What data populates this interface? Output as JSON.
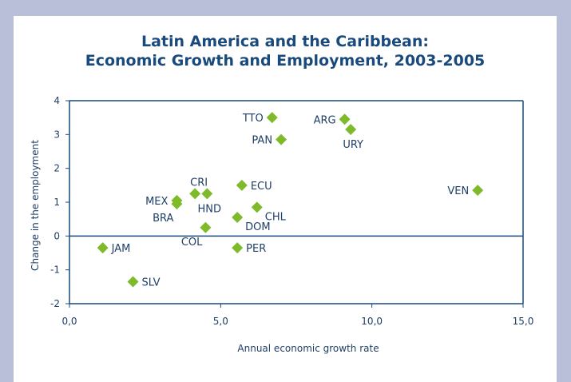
{
  "chart_data": {
    "type": "scatter",
    "title_line1": "Latin America and the Caribbean:",
    "title_line2": "Economic Growth and Employment, 2003-2005",
    "xlabel": "Annual economic growth rate",
    "ylabel": "Change in the employment",
    "xlim": [
      0,
      15
    ],
    "ylim": [
      -2,
      4
    ],
    "xticks": [
      0,
      5,
      10,
      15
    ],
    "xtick_labels": [
      "0,0",
      "5,0",
      "10,0",
      "15,0"
    ],
    "yticks": [
      -2,
      -1,
      0,
      1,
      2,
      3,
      4
    ],
    "ytick_labels": [
      "-2",
      "-1",
      "0",
      "1",
      "2",
      "3",
      "4"
    ],
    "grid": false,
    "marker_color": "#7fba2b",
    "axis_color": "#1a4a7c",
    "points": [
      {
        "label": "TTO",
        "x": 6.7,
        "y": 3.5,
        "label_pos": "left"
      },
      {
        "label": "ARG",
        "x": 9.1,
        "y": 3.45,
        "label_pos": "left"
      },
      {
        "label": "URY",
        "x": 9.3,
        "y": 3.15,
        "label_pos": "below"
      },
      {
        "label": "PAN",
        "x": 7.0,
        "y": 2.85,
        "label_pos": "left"
      },
      {
        "label": "ECU",
        "x": 5.7,
        "y": 1.5,
        "label_pos": "right"
      },
      {
        "label": "VEN",
        "x": 13.5,
        "y": 1.35,
        "label_pos": "left"
      },
      {
        "label": "CRI",
        "x": 4.15,
        "y": 1.25,
        "label_pos": "above"
      },
      {
        "label": "HND",
        "x": 4.55,
        "y": 1.25,
        "label_pos": "below"
      },
      {
        "label": "MEX",
        "x": 3.55,
        "y": 1.05,
        "label_pos": "left"
      },
      {
        "label": "BRA",
        "x": 3.55,
        "y": 0.95,
        "label_pos": "below-left"
      },
      {
        "label": "CHL",
        "x": 6.2,
        "y": 0.85,
        "label_pos": "right-below"
      },
      {
        "label": "DOM",
        "x": 5.55,
        "y": 0.55,
        "label_pos": "right-below"
      },
      {
        "label": "COL",
        "x": 4.5,
        "y": 0.25,
        "label_pos": "below-left"
      },
      {
        "label": "JAM",
        "x": 1.1,
        "y": -0.35,
        "label_pos": "right"
      },
      {
        "label": "PER",
        "x": 5.55,
        "y": -0.35,
        "label_pos": "right"
      },
      {
        "label": "SLV",
        "x": 2.1,
        "y": -1.35,
        "label_pos": "right"
      }
    ]
  }
}
